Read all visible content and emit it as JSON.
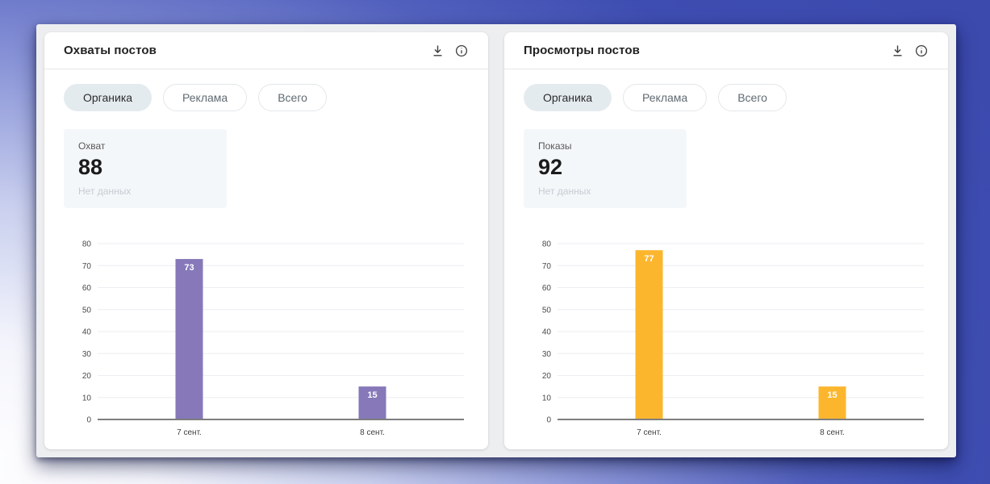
{
  "page": {
    "backdrop_color": "#3e4db1",
    "panel_color": "#edeef0"
  },
  "cards": [
    {
      "title": "Охваты постов",
      "icons": {
        "download": "download",
        "info": "info"
      },
      "tabs": [
        {
          "label": "Органика",
          "active": true
        },
        {
          "label": "Реклама",
          "active": false
        },
        {
          "label": "Всего",
          "active": false
        }
      ],
      "stat": {
        "label": "Охват",
        "value": "88",
        "note": "Нет данных"
      }
    },
    {
      "title": "Просмотры постов",
      "icons": {
        "download": "download",
        "info": "info"
      },
      "tabs": [
        {
          "label": "Органика",
          "active": true
        },
        {
          "label": "Реклама",
          "active": false
        },
        {
          "label": "Всего",
          "active": false
        }
      ],
      "stat": {
        "label": "Показы",
        "value": "92",
        "note": "Нет данных"
      }
    }
  ],
  "chart_data": [
    {
      "type": "bar",
      "categories": [
        "7 сент.",
        "8 сент."
      ],
      "values": [
        73,
        15
      ],
      "bar_color": "#8678b9",
      "value_label_color": "#ffffff",
      "ylim": [
        0,
        80
      ],
      "ytick_step": 10,
      "grid": true,
      "grid_color": "#ededf3",
      "baseline_color": "#7e7e7e",
      "legend": "none",
      "xlabel": "",
      "ylabel": ""
    },
    {
      "type": "bar",
      "categories": [
        "7 сент.",
        "8 сент."
      ],
      "values": [
        77,
        15
      ],
      "bar_color": "#fcb62e",
      "value_label_color": "#ffffff",
      "ylim": [
        0,
        80
      ],
      "ytick_step": 10,
      "grid": true,
      "grid_color": "#ededf3",
      "baseline_color": "#7e7e7e",
      "legend": "none",
      "xlabel": "",
      "ylabel": ""
    }
  ]
}
